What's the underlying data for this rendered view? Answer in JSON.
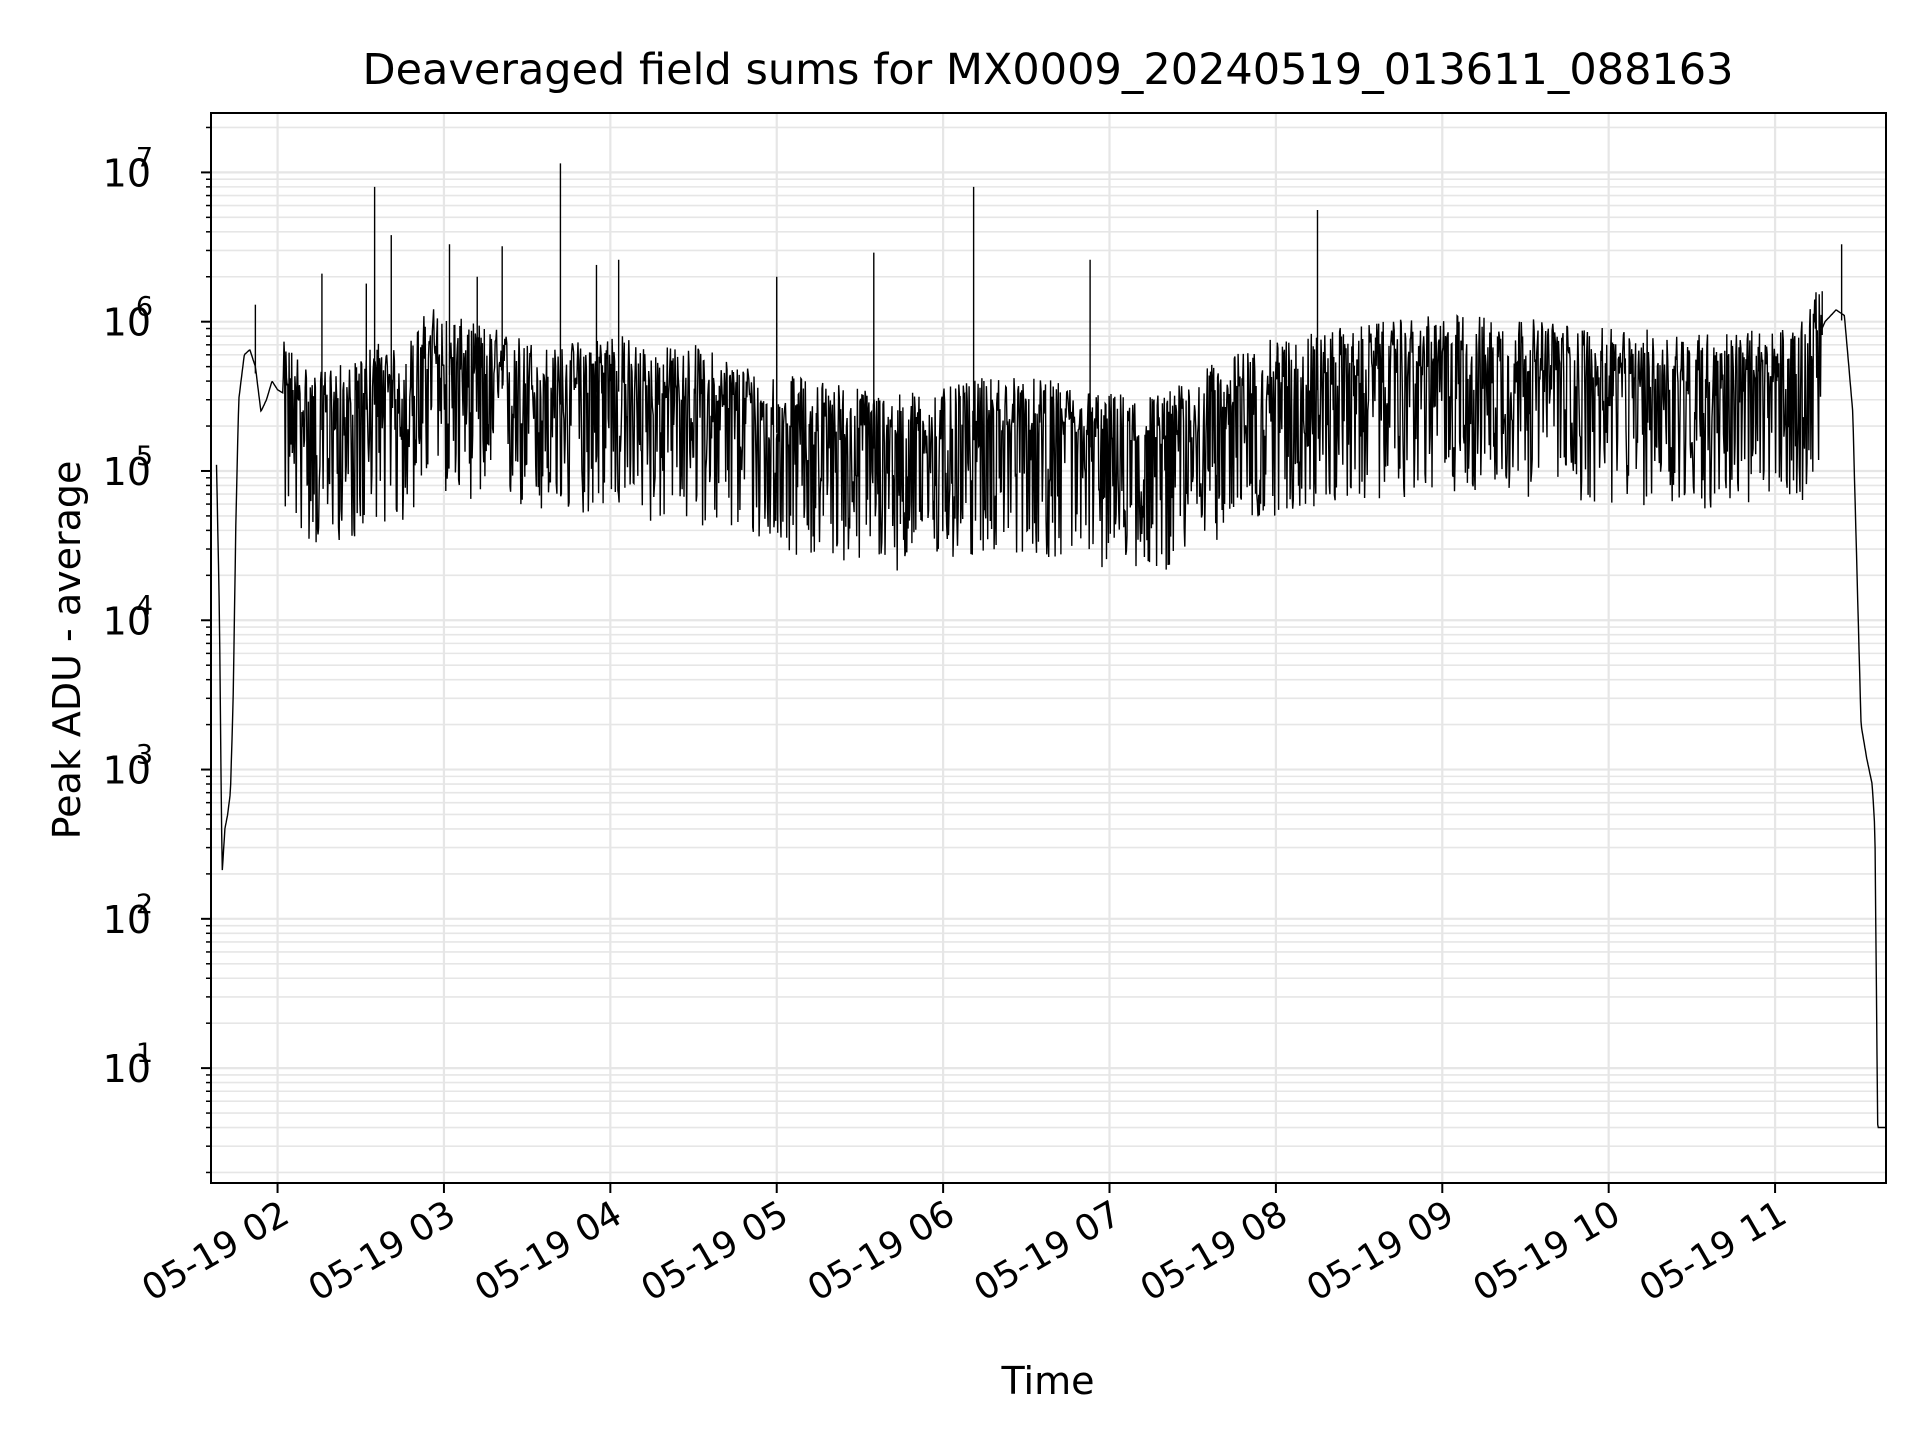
{
  "chart_data": {
    "type": "line",
    "title": "Deaveraged field sums for MX0009_20240519_013611_088163",
    "xlabel": "Time",
    "ylabel": "Peak ADU - average",
    "yscale": "log",
    "ylim": [
      1.7,
      25000000
    ],
    "xlim": [
      "2024-05-19 01:36",
      "2024-05-19 11:40"
    ],
    "grid": true,
    "line_color": "#000000",
    "grid_color": "#e6e6e6",
    "x_ticks": [
      "05-19 02",
      "05-19 03",
      "05-19 04",
      "05-19 05",
      "05-19 06",
      "05-19 07",
      "05-19 08",
      "05-19 09",
      "05-19 10",
      "05-19 11"
    ],
    "x_tick_values": [
      "2024-05-19 02:00",
      "2024-05-19 03:00",
      "2024-05-19 04:00",
      "2024-05-19 05:00",
      "2024-05-19 06:00",
      "2024-05-19 07:00",
      "2024-05-19 08:00",
      "2024-05-19 09:00",
      "2024-05-19 10:00",
      "2024-05-19 11:00"
    ],
    "y_ticks": [
      {
        "base": "10",
        "exp": "1",
        "value": 10
      },
      {
        "base": "10",
        "exp": "2",
        "value": 100
      },
      {
        "base": "10",
        "exp": "3",
        "value": 1000
      },
      {
        "base": "10",
        "exp": "4",
        "value": 10000
      },
      {
        "base": "10",
        "exp": "5",
        "value": 100000
      },
      {
        "base": "10",
        "exp": "6",
        "value": 1000000
      },
      {
        "base": "10",
        "exp": "7",
        "value": 10000000
      }
    ],
    "series": [
      {
        "x": [
          "2024-05-19 01:38",
          "2024-05-19 01:39",
          "2024-05-19 01:40",
          "2024-05-19 01:41",
          "2024-05-19 01:42",
          "2024-05-19 01:43",
          "2024-05-19 01:44",
          "2024-05-19 01:45",
          "2024-05-19 01:46",
          "2024-05-19 01:48",
          "2024-05-19 01:50",
          "2024-05-19 01:52",
          "2024-05-19 01:54",
          "2024-05-19 01:56",
          "2024-05-19 01:58",
          "2024-05-19 02:00",
          "2024-05-19 02:06",
          "2024-05-19 02:12",
          "2024-05-19 02:15",
          "2024-05-19 02:20",
          "2024-05-19 02:25",
          "2024-05-19 02:30",
          "2024-05-19 02:35",
          "2024-05-19 02:40",
          "2024-05-19 02:45",
          "2024-05-19 02:50",
          "2024-05-19 02:55",
          "2024-05-19 03:00",
          "2024-05-19 03:10",
          "2024-05-19 03:20",
          "2024-05-19 03:30",
          "2024-05-19 03:40",
          "2024-05-19 03:50",
          "2024-05-19 04:00",
          "2024-05-19 04:15",
          "2024-05-19 04:30",
          "2024-05-19 04:45",
          "2024-05-19 05:00",
          "2024-05-19 05:20",
          "2024-05-19 05:40",
          "2024-05-19 06:00",
          "2024-05-19 06:20",
          "2024-05-19 06:40",
          "2024-05-19 07:00",
          "2024-05-19 07:20",
          "2024-05-19 07:40",
          "2024-05-19 08:00",
          "2024-05-19 08:20",
          "2024-05-19 08:40",
          "2024-05-19 09:00",
          "2024-05-19 09:20",
          "2024-05-19 09:40",
          "2024-05-19 10:00",
          "2024-05-19 10:20",
          "2024-05-19 10:40",
          "2024-05-19 11:00",
          "2024-05-19 11:10",
          "2024-05-19 11:18",
          "2024-05-19 11:22",
          "2024-05-19 11:25",
          "2024-05-19 11:28",
          "2024-05-19 11:31",
          "2024-05-19 11:33",
          "2024-05-19 11:35",
          "2024-05-19 11:36",
          "2024-05-19 11:37",
          "2024-05-19 11:38",
          "2024-05-19 11:40"
        ],
        "values": [
          110000,
          12000,
          200,
          400,
          500,
          700,
          3000,
          50000,
          300000,
          600000,
          650000,
          500000,
          250000,
          300000,
          400000,
          350000,
          300000,
          220000,
          200000,
          250000,
          220000,
          250000,
          350000,
          300000,
          280000,
          400000,
          600000,
          500000,
          450000,
          400000,
          350000,
          300000,
          350000,
          400000,
          300000,
          320000,
          250000,
          200000,
          180000,
          150000,
          160000,
          200000,
          180000,
          150000,
          150000,
          250000,
          350000,
          400000,
          450000,
          500000,
          500000,
          450000,
          400000,
          400000,
          380000,
          400000,
          450000,
          1000000,
          1200000,
          1100000,
          250000,
          2000,
          1200,
          800,
          400,
          4,
          4,
          4
        ]
      }
    ]
  }
}
